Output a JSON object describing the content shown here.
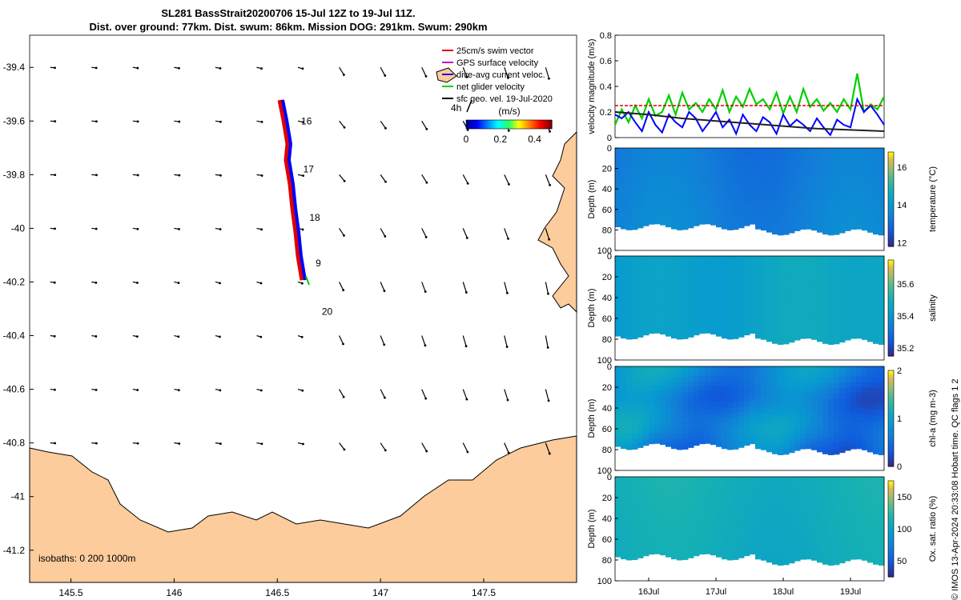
{
  "title": {
    "line1": "SL281 BassStrait20200706 15-Jul 12Z to 19-Jul 11Z.",
    "line2": "Dist. over ground: 77km. Dist. swum: 86km. Mission DOG: 291km. Swum: 290km"
  },
  "credit": "© IMOS 13-Apr-2024 20:33:08 Hobart time. QC flags 1  2",
  "chart_data": [
    {
      "type": "map",
      "xlim": [
        145.3,
        147.95
      ],
      "ylim": [
        -41.32,
        -39.28
      ],
      "x_ticks": [
        "145.5",
        "146",
        "146.5",
        "147",
        "147.5"
      ],
      "x_tick_values": [
        145.5,
        146,
        146.5,
        147,
        147.5
      ],
      "y_ticks": [
        "-39.4",
        "-39.6",
        "-39.8",
        "-40",
        "-40.2",
        "-40.4",
        "-40.6",
        "-40.8",
        "-41",
        "-41.2"
      ],
      "y_tick_values": [
        -39.4,
        -39.6,
        -39.8,
        -40,
        -40.2,
        -40.4,
        -40.6,
        -40.8,
        -41,
        -41.2
      ],
      "legend": [
        {
          "label": "25cm/s swim vector",
          "color": "#e00000"
        },
        {
          "label": "GPS surface velocity",
          "color": "#cc00cc"
        },
        {
          "label": "dive-avg current veloc.",
          "color": "#0000ff"
        },
        {
          "label": "net glider velocity",
          "color": "#00d000"
        },
        {
          "label": "sfc geo. vel. 19-Jul-2020",
          "color": "#000000"
        }
      ],
      "scale_vector_label": "4h",
      "colorbar": {
        "label": "(m/s)",
        "ticks": [
          "0",
          "0.2",
          "0.4"
        ],
        "tick_values": [
          0,
          0.2,
          0.4
        ],
        "range": [
          0,
          0.5
        ]
      },
      "day_labels": [
        {
          "label": "16",
          "lon": 146.6,
          "lat": -39.6
        },
        {
          "label": "17",
          "lon": 146.61,
          "lat": -39.78
        },
        {
          "label": "18",
          "lon": 146.64,
          "lat": -39.96
        },
        {
          "label": "9",
          "lon": 146.67,
          "lat": -40.13
        },
        {
          "label": "20",
          "lon": 146.7,
          "lat": -40.31
        }
      ],
      "isobaths_label": "isobaths: 0   200  1000m",
      "land_color": "#fccc9c"
    },
    {
      "type": "line",
      "ylabel": "velocity magnitude (m/s)",
      "ylim": [
        0,
        0.8
      ],
      "y_ticks": [
        "0",
        "0.2",
        "0.4",
        "0.6",
        "0.8"
      ],
      "y_tick_values": [
        0,
        0.2,
        0.4,
        0.6,
        0.8
      ],
      "x_range_days": [
        15.5,
        19.5
      ],
      "series": [
        {
          "color": "#00d000",
          "x": [
            15.5,
            15.6,
            15.7,
            15.8,
            15.9,
            16.0,
            16.1,
            16.2,
            16.3,
            16.4,
            16.5,
            16.6,
            16.7,
            16.8,
            16.9,
            17.0,
            17.1,
            17.2,
            17.3,
            17.4,
            17.5,
            17.6,
            17.7,
            17.8,
            17.9,
            18.0,
            18.1,
            18.2,
            18.3,
            18.4,
            18.5,
            18.6,
            18.7,
            18.8,
            18.9,
            19.0,
            19.1,
            19.2,
            19.3,
            19.4,
            19.5
          ],
          "y": [
            0.1,
            0.22,
            0.12,
            0.25,
            0.15,
            0.3,
            0.17,
            0.2,
            0.33,
            0.18,
            0.35,
            0.22,
            0.27,
            0.2,
            0.3,
            0.22,
            0.37,
            0.2,
            0.32,
            0.24,
            0.38,
            0.26,
            0.3,
            0.22,
            0.35,
            0.19,
            0.32,
            0.2,
            0.38,
            0.24,
            0.3,
            0.21,
            0.27,
            0.2,
            0.3,
            0.22,
            0.5,
            0.2,
            0.26,
            0.22,
            0.32
          ]
        },
        {
          "color": "#0000ff",
          "x": [
            15.5,
            15.6,
            15.7,
            15.8,
            15.9,
            16.0,
            16.1,
            16.2,
            16.3,
            16.4,
            16.5,
            16.6,
            16.7,
            16.8,
            16.9,
            17.0,
            17.1,
            17.2,
            17.3,
            17.4,
            17.5,
            17.6,
            17.7,
            17.8,
            17.9,
            18.0,
            18.1,
            18.2,
            18.3,
            18.4,
            18.5,
            18.6,
            18.7,
            18.8,
            18.9,
            19.0,
            19.1,
            19.2,
            19.3,
            19.4,
            19.5
          ],
          "y": [
            0.18,
            0.15,
            0.2,
            0.12,
            0.05,
            0.2,
            0.1,
            0.04,
            0.18,
            0.12,
            0.08,
            0.2,
            0.15,
            0.05,
            0.12,
            0.2,
            0.08,
            0.14,
            0.03,
            0.18,
            0.1,
            0.05,
            0.16,
            0.12,
            0.03,
            0.18,
            0.09,
            0.14,
            0.1,
            0.05,
            0.15,
            0.08,
            0.02,
            0.14,
            0.1,
            0.08,
            0.3,
            0.2,
            0.25,
            0.18,
            0.1
          ]
        },
        {
          "color": "#222222",
          "x": [
            15.5,
            16.0,
            16.5,
            17.0,
            17.5,
            18.0,
            18.5,
            19.0,
            19.5
          ],
          "y": [
            0.2,
            0.18,
            0.15,
            0.13,
            0.11,
            0.09,
            0.07,
            0.06,
            0.05
          ]
        },
        {
          "color": "#e00000",
          "x": [
            15.5,
            19.5
          ],
          "y": [
            0.25,
            0.25
          ]
        }
      ]
    },
    {
      "type": "heatmap",
      "ylabel": "Depth (m)",
      "colorbar_label": "temperature (°C)",
      "colorbar_ticks": [
        "12",
        "14",
        "16"
      ],
      "colorbar_tick_values": [
        12,
        14,
        16
      ],
      "clim": [
        11.8,
        16.8
      ],
      "y_ticks": [
        "0",
        "20",
        "40",
        "60",
        "80",
        "100"
      ],
      "y_tick_values": [
        0,
        20,
        40,
        60,
        80,
        100
      ],
      "base_value": 13.4
    },
    {
      "type": "heatmap",
      "ylabel": "Depth (m)",
      "colorbar_label": "salinity",
      "colorbar_ticks": [
        "35.2",
        "35.4",
        "35.6"
      ],
      "colorbar_tick_values": [
        35.2,
        35.4,
        35.6
      ],
      "clim": [
        35.15,
        35.75
      ],
      "y_ticks": [
        "0",
        "20",
        "40",
        "60",
        "80",
        "100"
      ],
      "y_tick_values": [
        0,
        20,
        40,
        60,
        80,
        100
      ],
      "base_value": 35.45
    },
    {
      "type": "heatmap",
      "ylabel": "Depth (m)",
      "colorbar_label": "chl-a (mg m-3)",
      "colorbar_ticks": [
        "0",
        "1",
        "2"
      ],
      "colorbar_tick_values": [
        0,
        1,
        2
      ],
      "clim": [
        0,
        2
      ],
      "y_ticks": [
        "0",
        "20",
        "40",
        "60",
        "80",
        "100"
      ],
      "y_tick_values": [
        0,
        20,
        40,
        60,
        80,
        100
      ],
      "base_value": 0.8
    },
    {
      "type": "heatmap",
      "ylabel": "Depth (m)",
      "colorbar_label": "Ox. sat. ratio (%)",
      "colorbar_ticks": [
        "50",
        "100",
        "150"
      ],
      "colorbar_tick_values": [
        50,
        100,
        150
      ],
      "clim": [
        25,
        175
      ],
      "y_ticks": [
        "0",
        "20",
        "40",
        "60",
        "80",
        "100"
      ],
      "y_tick_values": [
        0,
        20,
        40,
        60,
        80,
        100
      ],
      "base_value": 112,
      "x_ticks": [
        "16Jul",
        "17Jul",
        "18Jul",
        "19Jul"
      ],
      "x_tick_values": [
        16,
        17,
        18,
        19
      ]
    }
  ]
}
